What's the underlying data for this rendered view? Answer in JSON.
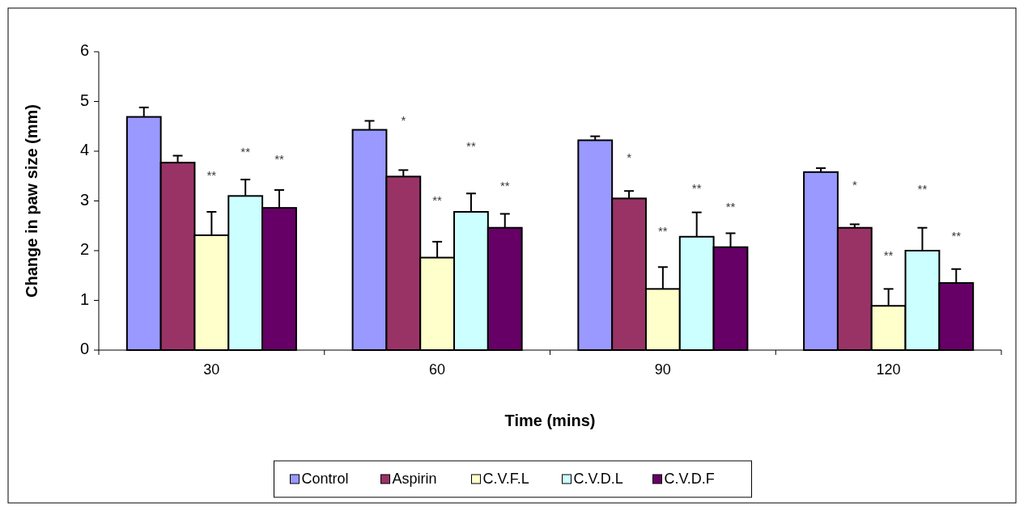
{
  "chart_data": {
    "type": "bar",
    "xlabel": "Time (mins)",
    "ylabel": "Change in paw size (mm)",
    "categories": [
      "30",
      "60",
      "90",
      "120"
    ],
    "ylim": [
      0,
      6
    ],
    "yticks": [
      0,
      1,
      2,
      3,
      4,
      5,
      6
    ],
    "grid": false,
    "legend": "bottom",
    "series": [
      {
        "name": "Control",
        "color": "#9999ff",
        "values": [
          4.69,
          4.43,
          4.22,
          3.58
        ],
        "errors": [
          0.19,
          0.18,
          0.08,
          0.08
        ]
      },
      {
        "name": "Aspirin",
        "color": "#993366",
        "values": [
          3.77,
          3.49,
          3.05,
          2.46
        ],
        "errors": [
          0.14,
          0.13,
          0.15,
          0.07
        ]
      },
      {
        "name": "C.V.F.L",
        "color": "#ffffcc",
        "values": [
          2.31,
          1.86,
          1.23,
          0.89
        ],
        "errors": [
          0.47,
          0.32,
          0.44,
          0.34
        ]
      },
      {
        "name": "C.V.D.L",
        "color": "#ccffff",
        "values": [
          3.1,
          2.78,
          2.28,
          2.0
        ],
        "errors": [
          0.33,
          0.37,
          0.49,
          0.46
        ]
      },
      {
        "name": "C.V.D.F",
        "color": "#660066",
        "values": [
          2.86,
          2.46,
          2.07,
          1.35
        ],
        "errors": [
          0.36,
          0.28,
          0.28,
          0.28
        ]
      }
    ],
    "annotations": [
      "**",
      "**",
      "**",
      "*",
      "**",
      "**",
      "**",
      "*",
      "**",
      "**",
      "**",
      "*",
      "**",
      "**",
      "**"
    ]
  }
}
